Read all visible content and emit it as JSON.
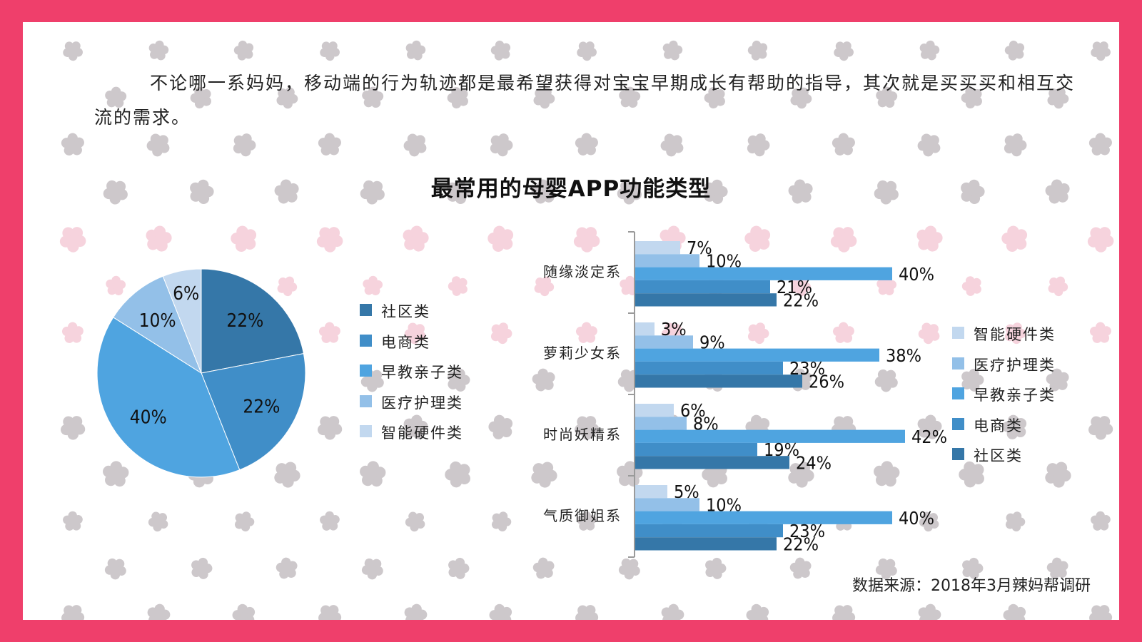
{
  "intro_text": "不论哪一系妈妈，移动端的行为轨迹都是最希望获得对宝宝早期成长有帮助的指导，其次就是买买买和相互交流的需求。",
  "chart_title": "最常用的母婴APP功能类型",
  "source": "数据来源：2018年3月辣妈帮调研",
  "colors": {
    "frame": "#ef3f6b",
    "社区类": "#3577a8",
    "电商类": "#408ec8",
    "早教亲子类": "#4fa4e0",
    "医疗护理类": "#93c0e8",
    "智能硬件类": "#c2d8ef"
  },
  "chart_data": [
    {
      "type": "pie",
      "categories": [
        "社区类",
        "电商类",
        "早教亲子类",
        "医疗护理类",
        "智能硬件类"
      ],
      "values": [
        22,
        22,
        40,
        10,
        6
      ],
      "labels": [
        "22%",
        "22%",
        "40%",
        "10%",
        "6%"
      ],
      "legend": [
        "社区类",
        "电商类",
        "早教亲子类",
        "医疗护理类",
        "智能硬件类"
      ],
      "legend_position": "right"
    },
    {
      "type": "bar",
      "orientation": "horizontal",
      "categories": [
        "随缘淡定系",
        "萝莉少女系",
        "时尚妖精系",
        "气质御姐系"
      ],
      "series": [
        {
          "name": "智能硬件类",
          "values": [
            7,
            3,
            6,
            5
          ],
          "labels": [
            "7%",
            "3%",
            "6%",
            "5%"
          ]
        },
        {
          "name": "医疗护理类",
          "values": [
            10,
            9,
            8,
            10
          ],
          "labels": [
            "10%",
            "9%",
            "8%",
            "10%"
          ]
        },
        {
          "name": "早教亲子类",
          "values": [
            40,
            38,
            42,
            40
          ],
          "labels": [
            "40%",
            "38%",
            "42%",
            "40%"
          ]
        },
        {
          "name": "电商类",
          "values": [
            21,
            23,
            19,
            23
          ],
          "labels": [
            "21%",
            "23%",
            "19%",
            "23%"
          ]
        },
        {
          "name": "社区类",
          "values": [
            22,
            26,
            24,
            22
          ],
          "labels": [
            "22%",
            "26%",
            "24%",
            "22%"
          ]
        }
      ],
      "legend": [
        "智能硬件类",
        "医疗护理类",
        "早教亲子类",
        "电商类",
        "社区类"
      ],
      "legend_position": "right",
      "xlim": [
        0,
        45
      ],
      "grid": false
    }
  ]
}
